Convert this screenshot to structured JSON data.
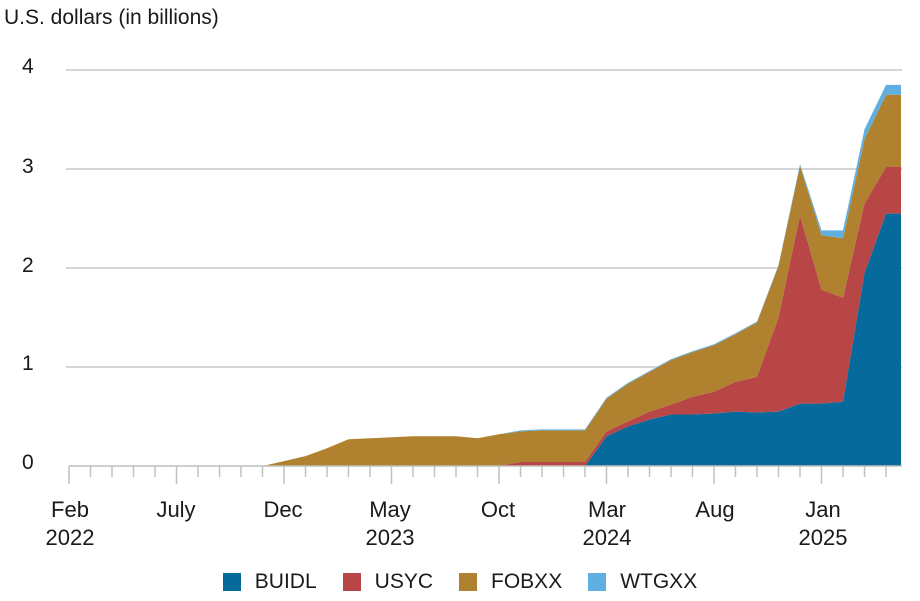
{
  "chart_data": {
    "type": "area",
    "stacked": true,
    "title": "",
    "ylabel": "U.S. dollars (in billions)",
    "xlabel": "",
    "ylim": [
      0,
      4
    ],
    "yticks": [
      "0",
      "1",
      "2",
      "3",
      "4"
    ],
    "grid": true,
    "legend_position": "bottom",
    "x_tick_labels": [
      {
        "month": "Feb",
        "year": "2022"
      },
      {
        "month": "July",
        "year": ""
      },
      {
        "month": "Dec",
        "year": ""
      },
      {
        "month": "May",
        "year": "2023"
      },
      {
        "month": "Oct",
        "year": ""
      },
      {
        "month": "Mar",
        "year": "2024"
      },
      {
        "month": "Aug",
        "year": ""
      },
      {
        "month": "Jan",
        "year": "2025"
      }
    ],
    "x": [
      "2022-02",
      "2022-03",
      "2022-04",
      "2022-05",
      "2022-06",
      "2022-07",
      "2022-08",
      "2022-09",
      "2022-10",
      "2022-11",
      "2022-12",
      "2023-01",
      "2023-02",
      "2023-03",
      "2023-04",
      "2023-05",
      "2023-06",
      "2023-07",
      "2023-08",
      "2023-09",
      "2023-10",
      "2023-11",
      "2023-12",
      "2024-01",
      "2024-02",
      "2024-03",
      "2024-04",
      "2024-05",
      "2024-06",
      "2024-07",
      "2024-08",
      "2024-09",
      "2024-10",
      "2024-11",
      "2024-12",
      "2025-01",
      "2025-02",
      "2025-03",
      "2025-04"
    ],
    "series": [
      {
        "name": "BUIDL",
        "color": "#066a9c",
        "values": [
          0,
          0,
          0,
          0,
          0,
          0,
          0,
          0,
          0,
          0,
          0,
          0,
          0,
          0,
          0,
          0,
          0,
          0,
          0,
          0,
          0,
          0,
          0,
          0,
          0,
          0.3,
          0.4,
          0.47,
          0.52,
          0.52,
          0.53,
          0.55,
          0.54,
          0.55,
          0.63,
          0.63,
          0.65,
          1.95,
          2.55
        ]
      },
      {
        "name": "USYC",
        "color": "#b84646",
        "values": [
          0,
          0,
          0,
          0,
          0,
          0,
          0,
          0,
          0,
          0,
          0,
          0,
          0,
          0,
          0,
          0,
          0,
          0,
          0,
          0,
          0,
          0.04,
          0.04,
          0.04,
          0.04,
          0.05,
          0.05,
          0.08,
          0.1,
          0.18,
          0.22,
          0.3,
          0.36,
          0.95,
          1.9,
          1.15,
          1.05,
          0.7,
          0.47
        ]
      },
      {
        "name": "FOBXX",
        "color": "#b0812e",
        "values": [
          0,
          0,
          0,
          0,
          0,
          0,
          0,
          0,
          0,
          0,
          0.05,
          0.1,
          0.18,
          0.27,
          0.28,
          0.29,
          0.3,
          0.3,
          0.3,
          0.28,
          0.32,
          0.31,
          0.32,
          0.32,
          0.32,
          0.33,
          0.38,
          0.4,
          0.45,
          0.45,
          0.47,
          0.48,
          0.55,
          0.52,
          0.5,
          0.55,
          0.6,
          0.65,
          0.73
        ]
      },
      {
        "name": "WTGXX",
        "color": "#5fafe0",
        "values": [
          0,
          0,
          0,
          0,
          0,
          0,
          0,
          0,
          0,
          0,
          0,
          0,
          0,
          0,
          0,
          0,
          0,
          0,
          0,
          0,
          0,
          0.01,
          0.01,
          0.01,
          0.01,
          0.01,
          0.01,
          0.01,
          0.01,
          0.01,
          0.01,
          0.01,
          0.01,
          0.01,
          0.02,
          0.05,
          0.08,
          0.1,
          0.1
        ]
      }
    ]
  },
  "axis": {
    "y_title": "U.S. dollars (in billions)"
  },
  "legend": [
    {
      "label": "BUIDL",
      "color": "#066a9c"
    },
    {
      "label": "USYC",
      "color": "#b84646"
    },
    {
      "label": "FOBXX",
      "color": "#b0812e"
    },
    {
      "label": "WTGXX",
      "color": "#5fafe0"
    }
  ]
}
